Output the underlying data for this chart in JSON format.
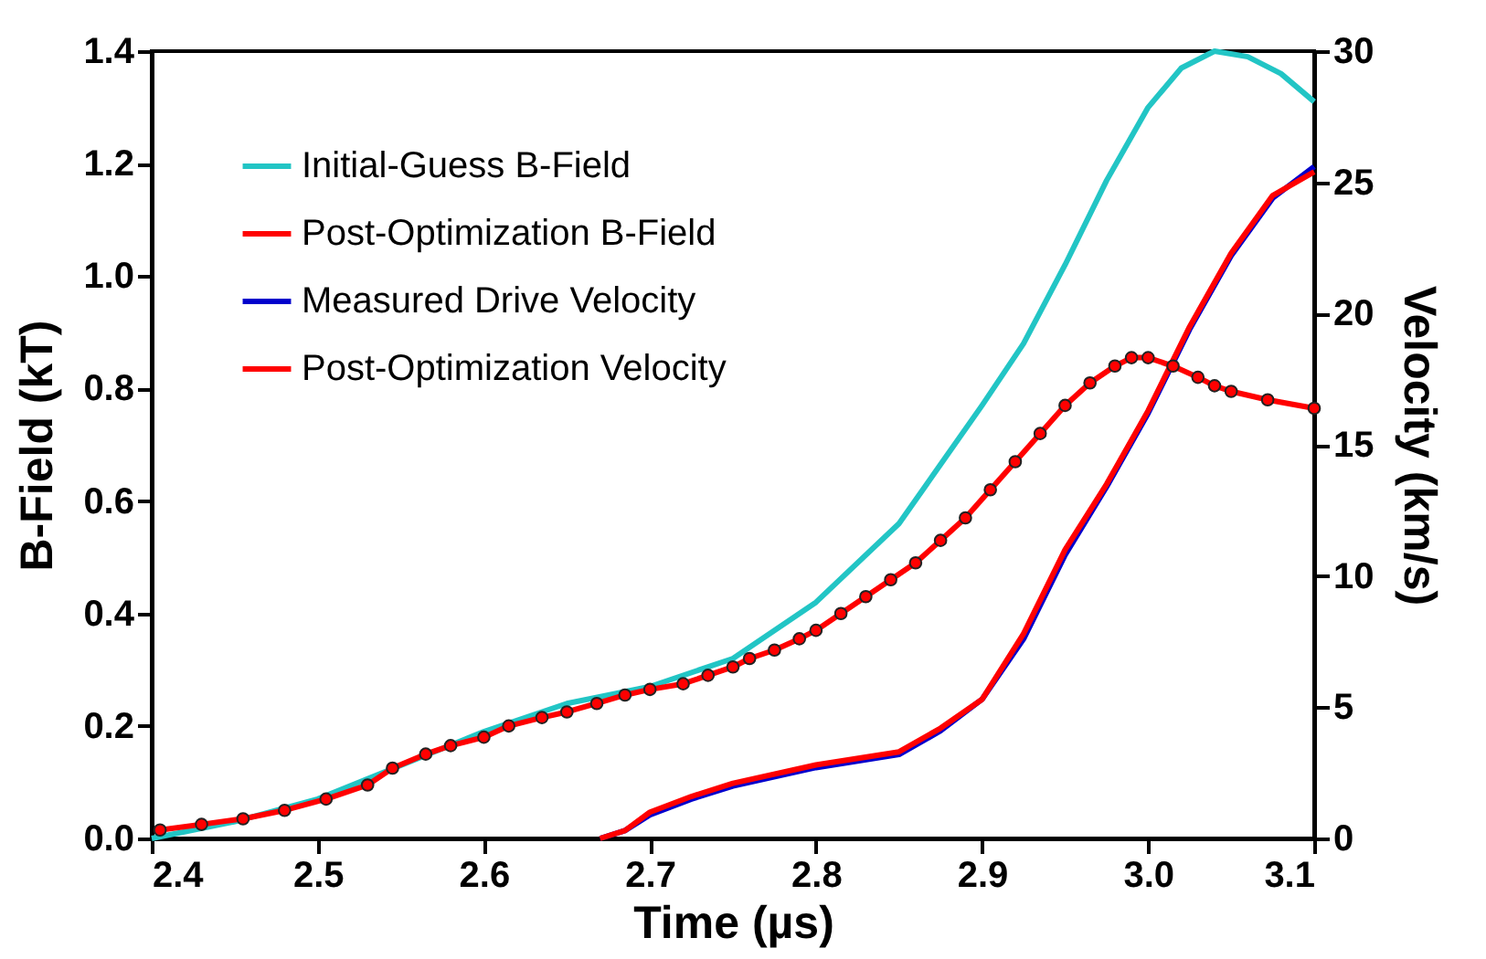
{
  "chart_data": {
    "type": "line",
    "xlabel": "Time (µs)",
    "ylabel": "B-Field (kT)",
    "y2label": "Velocity (km/s)",
    "xlim": [
      2.4,
      3.1
    ],
    "xticks": [
      2.4,
      2.5,
      2.6,
      2.7,
      2.8,
      2.9,
      {
        "value": 3,
        "label": "3.0"
      },
      3.1
    ],
    "ylim": [
      0,
      1.4
    ],
    "yticks": [
      {
        "value": 0,
        "label": "0.0"
      },
      0.2,
      0.4,
      0.6,
      0.8,
      {
        "value": 1,
        "label": "1.0"
      },
      1.2,
      1.4
    ],
    "y2lim": [
      0,
      30
    ],
    "y2ticks": [
      0,
      5,
      10,
      15,
      20,
      25,
      30
    ],
    "legend": "top left",
    "grid": false,
    "series": [
      {
        "name": "Initial-Guess B-Field",
        "color": "#22c5c5",
        "x": [
          2.4,
          2.45,
          2.5,
          2.55,
          2.6,
          2.65,
          2.7,
          2.75,
          2.8,
          2.85,
          2.9,
          2.925,
          2.95,
          2.975,
          3.0,
          3.02,
          3.04,
          3.06,
          3.08,
          3.1
        ],
        "values": [
          0.0,
          0.03,
          0.07,
          0.13,
          0.19,
          0.24,
          0.27,
          0.32,
          0.42,
          0.56,
          0.77,
          0.88,
          1.02,
          1.17,
          1.3,
          1.37,
          1.4,
          1.39,
          1.36,
          1.31
        ]
      },
      {
        "name": "Post-Optimization B-Field",
        "color": "#ff0000",
        "marker": "circle",
        "x": [
          2.405,
          2.43,
          2.455,
          2.48,
          2.505,
          2.53,
          2.545,
          2.565,
          2.58,
          2.6,
          2.615,
          2.635,
          2.65,
          2.668,
          2.685,
          2.7,
          2.72,
          2.735,
          2.75,
          2.76,
          2.775,
          2.79,
          2.8,
          2.815,
          2.83,
          2.845,
          2.86,
          2.875,
          2.89,
          2.905,
          2.92,
          2.935,
          2.95,
          2.965,
          2.98,
          2.99,
          3.0,
          3.015,
          3.03,
          3.04,
          3.05,
          3.072,
          3.1
        ],
        "values": [
          0.015,
          0.025,
          0.035,
          0.05,
          0.07,
          0.095,
          0.125,
          0.15,
          0.165,
          0.18,
          0.2,
          0.215,
          0.225,
          0.24,
          0.255,
          0.265,
          0.275,
          0.29,
          0.305,
          0.32,
          0.335,
          0.355,
          0.37,
          0.4,
          0.43,
          0.46,
          0.49,
          0.53,
          0.57,
          0.62,
          0.67,
          0.72,
          0.77,
          0.81,
          0.84,
          0.855,
          0.855,
          0.84,
          0.82,
          0.805,
          0.795,
          0.78,
          0.765
        ]
      },
      {
        "name": "Measured Drive Velocity",
        "color": "#0000cc",
        "axis": "y2",
        "x": [
          2.67,
          2.685,
          2.7,
          2.725,
          2.75,
          2.8,
          2.85,
          2.875,
          2.9,
          2.925,
          2.95,
          2.975,
          3.0,
          3.025,
          3.05,
          3.075,
          3.1
        ],
        "values": [
          0,
          0.3,
          0.9,
          1.5,
          2.0,
          2.7,
          3.2,
          4.1,
          5.3,
          7.6,
          10.8,
          13.4,
          16.2,
          19.4,
          22.2,
          24.4,
          25.6
        ]
      },
      {
        "name": "Post-Optimization Velocity",
        "color": "#ff0000",
        "axis": "y2",
        "x": [
          2.67,
          2.685,
          2.7,
          2.725,
          2.75,
          2.8,
          2.85,
          2.875,
          2.9,
          2.925,
          2.95,
          2.975,
          3.0,
          3.025,
          3.05,
          3.075,
          3.1
        ],
        "values": [
          0,
          0.3,
          1.0,
          1.6,
          2.1,
          2.8,
          3.3,
          4.2,
          5.3,
          7.8,
          11.0,
          13.5,
          16.3,
          19.5,
          22.3,
          24.5,
          25.4
        ]
      }
    ]
  }
}
